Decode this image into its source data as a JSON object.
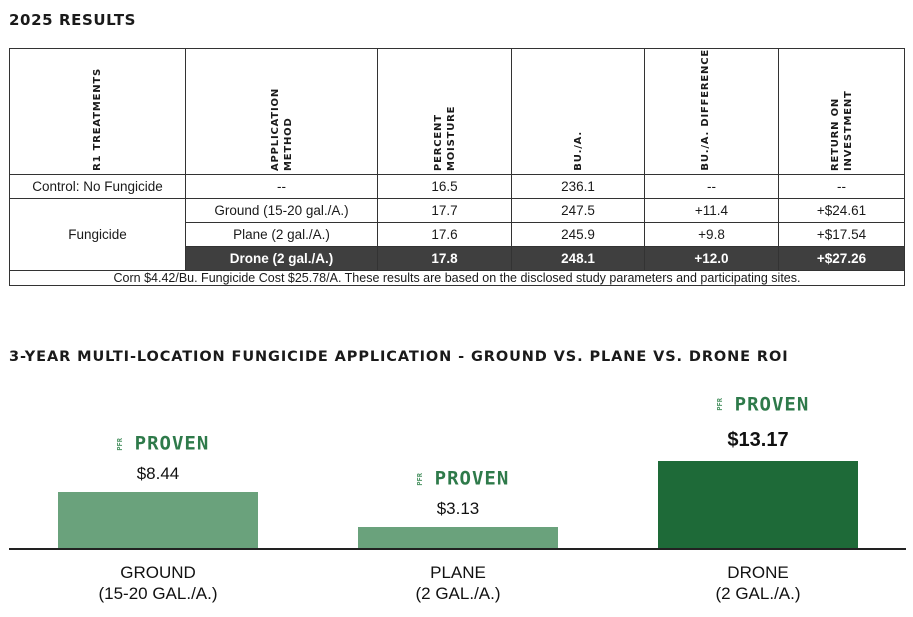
{
  "results": {
    "title": "2025 RESULTS",
    "headers": [
      "R1 TREATMENTS",
      "APPLICATION METHOD",
      "PERCENT MOISTURE",
      "BU./A.",
      "BU./A. DIFFERENCE",
      "RETURN ON INVESTMENT"
    ],
    "control": {
      "treatment": "Control: No Fungicide",
      "method": "--",
      "moisture": "16.5",
      "bu": "236.1",
      "diff": "--",
      "roi": "--"
    },
    "fungicide_label": "Fungicide",
    "fungicide_rows": [
      {
        "method": "Ground (15-20 gal./A.)",
        "moisture": "17.7",
        "bu": "247.5",
        "diff": "+11.4",
        "roi": "+$24.61"
      },
      {
        "method": "Plane (2 gal./A.)",
        "moisture": "17.6",
        "bu": "245.9",
        "diff": "+9.8",
        "roi": "+$17.54"
      },
      {
        "method": "Drone (2 gal./A.)",
        "moisture": "17.8",
        "bu": "248.1",
        "diff": "+12.0",
        "roi": "+$27.26"
      }
    ],
    "note": "Corn $4.42/Bu. Fungicide Cost $25.78/A. These results are based on the disclosed study parameters and participating sites."
  },
  "badge": {
    "small": "PFR",
    "word": "PROVEN"
  },
  "colors": {
    "light_bar": "#6aa27c",
    "dark_bar": "#1e6a38",
    "highlight_row": "#3f3f3f"
  },
  "chart_data": {
    "type": "bar",
    "title": "3-YEAR MULTI-LOCATION FUNGICIDE APPLICATION - GROUND VS. PLANE VS. DRONE ROI",
    "categories": [
      "GROUND\n(15-20 GAL./A.)",
      "PLANE\n(2 GAL./A.)",
      "DRONE\n(2 GAL./A.)"
    ],
    "values": [
      8.44,
      3.13,
      13.17
    ],
    "value_labels": [
      "$8.44",
      "$3.13",
      "$13.17"
    ],
    "ylim": [
      0,
      14.5
    ],
    "grid": false
  }
}
